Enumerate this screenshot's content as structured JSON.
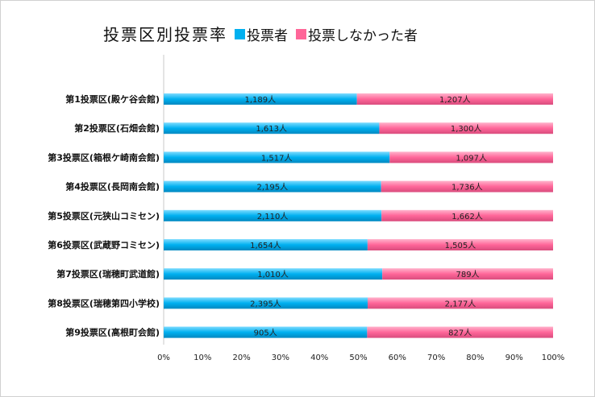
{
  "chart_data": {
    "type": "bar",
    "stacked": "percent",
    "orientation": "horizontal",
    "title": "投票区別投票率",
    "categories": [
      "第1投票区(殿ケ谷会館)",
      "第2投票区(石畑会館)",
      "第3投票区(箱根ケ崎南会館)",
      "第4投票区(長岡南会館)",
      "第5投票区(元狭山コミセン)",
      "第6投票区(武蔵野コミセン)",
      "第7投票区(瑞穂町武道館)",
      "第8投票区(瑞穂第四小学校)",
      "第9投票区(高根町会館)"
    ],
    "series": [
      {
        "name": "投票者",
        "color": "#00b0f0",
        "values": [
          1189,
          1613,
          1517,
          2195,
          2110,
          1654,
          1010,
          2395,
          905
        ],
        "labels": [
          "1,189人",
          "1,613人",
          "1,517人",
          "2,195人",
          "2,110人",
          "1,654人",
          "1,010人",
          "2,395人",
          "905人"
        ]
      },
      {
        "name": "投票しなかった者",
        "color": "#ff6699",
        "values": [
          1207,
          1300,
          1097,
          1736,
          1662,
          1505,
          789,
          2177,
          827
        ],
        "labels": [
          "1,207人",
          "1,300人",
          "1,097人",
          "1,736人",
          "1,662人",
          "1,505人",
          "789人",
          "2,177人",
          "827人"
        ]
      }
    ],
    "xlim": [
      0,
      100
    ],
    "xticks": [
      "0%",
      "10%",
      "20%",
      "30%",
      "40%",
      "50%",
      "60%",
      "70%",
      "80%",
      "90%",
      "100%"
    ],
    "legend": "top",
    "grid": false
  }
}
